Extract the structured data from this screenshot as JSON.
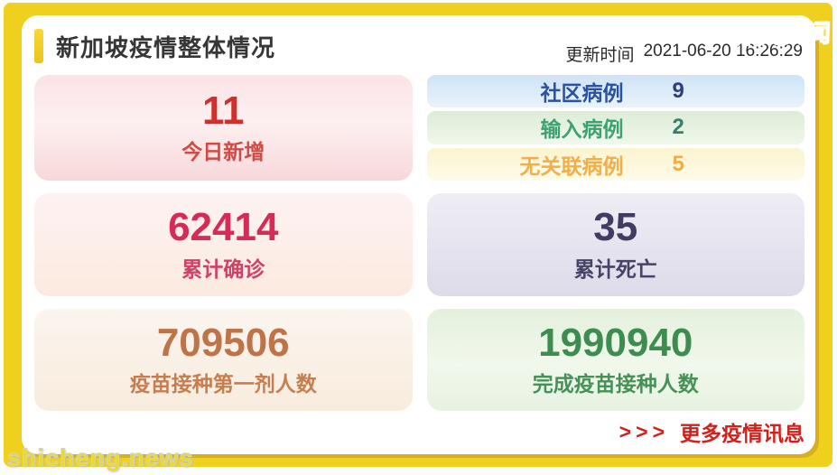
{
  "header": {
    "title": "新加坡疫情整体情况",
    "update_label": "更新时间",
    "update_time": "2021-06-20 16:26:29",
    "accent_color": "#f2c91e"
  },
  "brand": {
    "logo_text": "狮城新闻",
    "logo_color": "#f6e40e",
    "watermark": "shicheng.news"
  },
  "case_rows": [
    {
      "label": "社区病例",
      "value": "9",
      "color": "#2a52a0",
      "bg": "#cfe3f6"
    },
    {
      "label": "输入病例",
      "value": "2",
      "color": "#3ea172",
      "bg": "#dcecd6"
    },
    {
      "label": "无关联病例",
      "value": "5",
      "color": "#f2ae49",
      "bg": "#fbf4cf"
    }
  ],
  "stat_cards": {
    "today_new": {
      "value": "11",
      "label": "今日新增",
      "color": "#d22e2e",
      "bg": "#fbe3e6"
    },
    "total_confirmed": {
      "value": "62414",
      "label": "累计确诊",
      "color": "#d52b56",
      "bg": "#fdf2f2"
    },
    "total_deaths": {
      "value": "35",
      "label": "累计死亡",
      "color": "#403c64",
      "bg": "#efedf4"
    },
    "first_dose": {
      "value": "709506",
      "label": "疫苗接种第一剂人数",
      "color": "#bf7348",
      "bg": "#fbf5ef"
    },
    "fully_vaccinated": {
      "value": "1990940",
      "label": "完成疫苗接种人数",
      "color": "#3e8d50",
      "bg": "#e4f0dd"
    }
  },
  "footer": {
    "arrows": ">>>",
    "more_label": "更多疫情讯息",
    "color": "#d2211c"
  },
  "frame_color": "#f0d01f"
}
